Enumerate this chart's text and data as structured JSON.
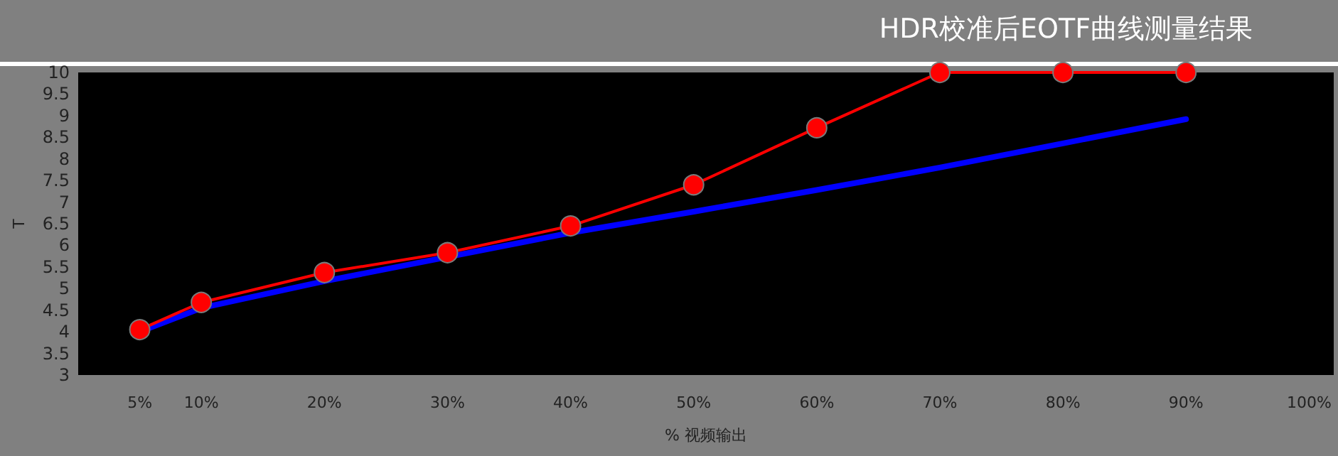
{
  "chart_data": {
    "type": "line",
    "title": "HDR校准后EOTF曲线测量结果",
    "xlabel": "% 视频输出",
    "ylabel": "T",
    "x": [
      5,
      10,
      20,
      30,
      40,
      50,
      60,
      70,
      80,
      90
    ],
    "xlim": [
      0,
      102
    ],
    "xticks": [
      {
        "value": 5,
        "label": "5%"
      },
      {
        "value": 10,
        "label": "10%"
      },
      {
        "value": 20,
        "label": "20%"
      },
      {
        "value": 30,
        "label": "30%"
      },
      {
        "value": 40,
        "label": "40%"
      },
      {
        "value": 50,
        "label": "50%"
      },
      {
        "value": 60,
        "label": "60%"
      },
      {
        "value": 70,
        "label": "70%"
      },
      {
        "value": 80,
        "label": "80%"
      },
      {
        "value": 90,
        "label": "90%"
      },
      {
        "value": 100,
        "label": "100%"
      }
    ],
    "ylim": [
      3,
      10
    ],
    "yticks": [
      3,
      3.5,
      4,
      4.5,
      5,
      5.5,
      6,
      6.5,
      7,
      7.5,
      8,
      8.5,
      9,
      9.5,
      10
    ],
    "grid": false,
    "series": [
      {
        "color": "#0000ff",
        "marker": "none",
        "values": [
          4.0,
          4.55,
          5.17,
          5.73,
          6.29,
          6.78,
          7.28,
          7.8,
          8.36,
          8.92
        ]
      },
      {
        "color": "#ff0000",
        "marker": "circle",
        "values": [
          4.05,
          4.68,
          5.37,
          5.83,
          6.45,
          7.4,
          8.72,
          10,
          10,
          10
        ]
      }
    ]
  }
}
